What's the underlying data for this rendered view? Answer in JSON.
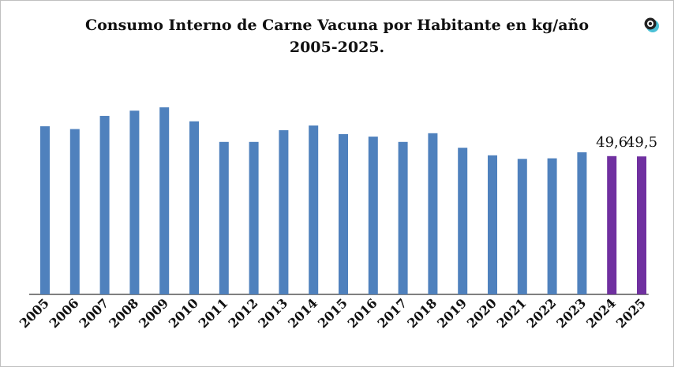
{
  "chart_data": {
    "type": "bar",
    "title_line1": "Consumo Interno de Carne Vacuna por Habitante en kg/año",
    "title_line2": "2005-2025.",
    "xlabel": "",
    "ylabel": "",
    "categories": [
      "2005",
      "2006",
      "2007",
      "2008",
      "2009",
      "2010",
      "2011",
      "2012",
      "2013",
      "2014",
      "2015",
      "2016",
      "2017",
      "2018",
      "2019",
      "2020",
      "2021",
      "2022",
      "2023",
      "2024",
      "2025"
    ],
    "values": [
      60.3,
      59.3,
      64.0,
      65.9,
      67.1,
      62.1,
      54.7,
      54.7,
      58.9,
      60.6,
      57.5,
      56.6,
      54.7,
      57.8,
      52.6,
      49.9,
      48.6,
      48.8,
      51.0,
      49.6,
      49.5
    ],
    "highlight_from_index": 19,
    "data_labels": [
      {
        "index": 19,
        "text": "49,6"
      },
      {
        "index": 20,
        "text": "49,5"
      }
    ],
    "ylim": [
      0,
      67.1
    ],
    "grid": false,
    "legend": "none",
    "colors": {
      "bar": "#4f81bd",
      "highlight": "#7030a0",
      "axis": "#000000"
    }
  },
  "logo_icon": "circle-logo-icon"
}
